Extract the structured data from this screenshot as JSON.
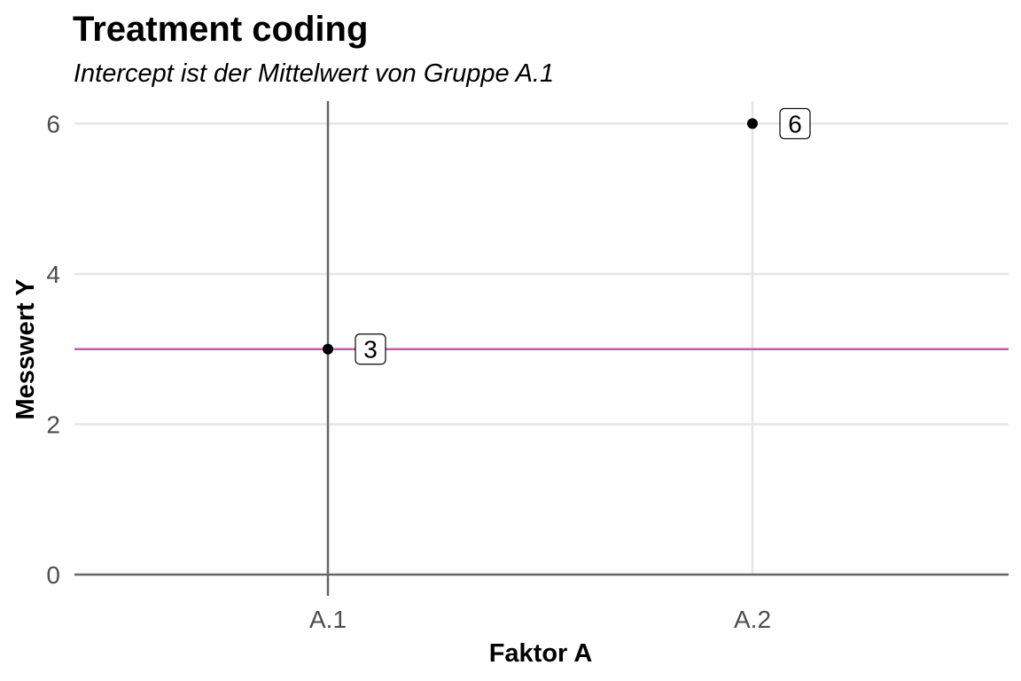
{
  "chart_data": {
    "type": "scatter",
    "title": "Treatment coding",
    "subtitle": "Intercept ist der Mittelwert von Gruppe A.1",
    "xlabel": "Faktor A",
    "ylabel": "Messwert Y",
    "categories": [
      "A.1",
      "A.2"
    ],
    "values": [
      3,
      6
    ],
    "point_labels": [
      "3",
      "6"
    ],
    "ylim": [
      0,
      6.3
    ],
    "yticks": [
      0,
      2,
      4,
      6
    ],
    "grid": true,
    "reference_lines": {
      "horizontal": {
        "y": 3,
        "color": "#c0609e"
      },
      "vertical": {
        "x": "A.1",
        "color": "#666666"
      },
      "zero_line": {
        "y": 0,
        "color": "#666666"
      }
    },
    "colors": {
      "point": "#000000",
      "grid": "#e5e5e5",
      "intercept_line": "#c0609e"
    }
  }
}
